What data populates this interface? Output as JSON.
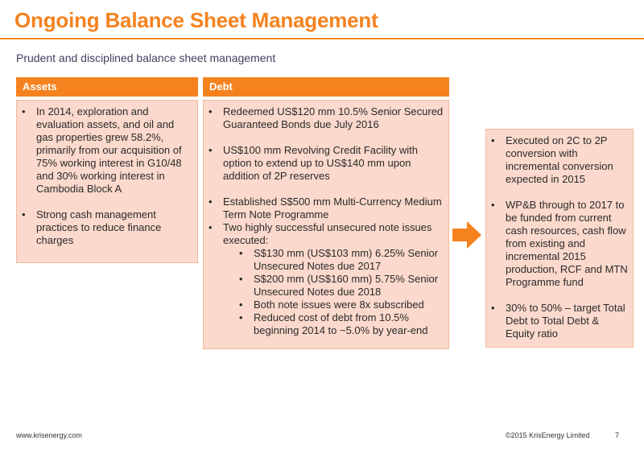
{
  "slide": {
    "title": "Ongoing Balance Sheet Management",
    "subtitle": "Prudent and disciplined balance sheet management"
  },
  "assets": {
    "heading": "Assets",
    "bullets": [
      "In 2014, exploration and evaluation assets, and oil and gas properties grew 58.2%, primarily from our acquisition of 75% working interest in G10/48 and 30% working interest in Cambodia Block A",
      "Strong cash management practices to reduce finance charges"
    ]
  },
  "debt": {
    "heading": "Debt",
    "bullets": [
      "Redeemed US$120 mm 10.5% Senior Secured Guaranteed Bonds due July 2016",
      "US$100 mm Revolving Credit Facility with option to extend up to US$140 mm upon addition of 2P reserves",
      "Established S$500 mm Multi-Currency Medium Term Note Programme",
      "Two highly successful unsecured note issues executed:"
    ],
    "sub_bullets": [
      "S$130 mm (US$103 mm) 6.25% Senior Unsecured Notes due 2017",
      "S$200 mm (US$160 mm) 5.75% Senior Unsecured Notes due 2018",
      "Both note issues were 8x subscribed",
      "Reduced cost of debt from 10.5% beginning 2014 to ~5.0% by year-end"
    ]
  },
  "outcome": {
    "bullets": [
      "Executed on 2C to 2P conversion with incremental conversion expected in 2015",
      "WP&B through to 2017 to be funded from current cash resources, cash flow from existing and incremental 2015 production, RCF and MTN Programme fund",
      "30% to 50% – target Total Debt to Total Debt & Equity ratio"
    ]
  },
  "footer": {
    "website": "www.krisenergy.com",
    "copyright": "©2015 KrisEnergy Limited",
    "page_number": "7"
  },
  "colors": {
    "accent": "#f5821f",
    "box_fill": "#fbd9cc"
  },
  "icons": [
    "right-arrow-icon"
  ]
}
